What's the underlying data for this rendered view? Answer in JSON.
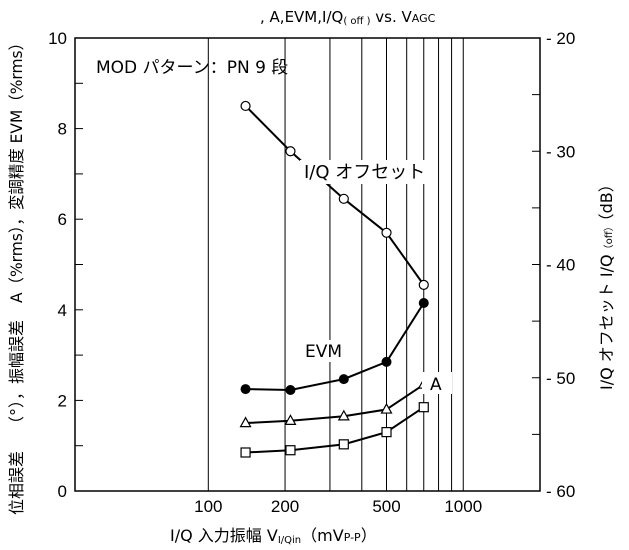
{
  "chart_data": {
    "type": "line",
    "title": ", A,EVM,I/Q(off) vs. VAGC",
    "title_parts": [
      ", A,EVM,I/Q",
      "( off )",
      " vs. V",
      "AGC"
    ],
    "annotation": "MOD パターン：PN 9 段",
    "x_axis": {
      "scale": "log",
      "range": [
        30,
        2000
      ],
      "ticks": [
        100,
        200,
        500,
        1000
      ],
      "tick_labels": [
        "100",
        "200",
        "500",
        "1000"
      ],
      "minor_gridlines": [
        100,
        200,
        300,
        400,
        500,
        600,
        700,
        800,
        900,
        1000
      ],
      "label_parts": [
        "I/Q 入力振幅 V",
        "I/Qin",
        "（mV",
        "P-P",
        "）"
      ]
    },
    "y_axis_left": {
      "range": [
        0,
        10
      ],
      "ticks": [
        0,
        2,
        4,
        6,
        8,
        10
      ],
      "tick_labels": [
        "0",
        "2",
        "4",
        "6",
        "8",
        "10"
      ],
      "label_parts": [
        "位相誤差",
        "（°），振幅誤差",
        "A（%rms），変調精度 EVM（%rms）"
      ]
    },
    "y_axis_right": {
      "range": [
        -60,
        -20
      ],
      "ticks": [
        -20,
        -30,
        -40,
        -50,
        -60
      ],
      "tick_labels": [
        "- 20",
        "- 30",
        "- 40",
        "- 50",
        "- 60"
      ],
      "label_parts": [
        "I/Q オフセット I/Q",
        "（off）",
        "（dB）"
      ]
    },
    "series": [
      {
        "name": "I/Q オフセット",
        "marker": "circle-open",
        "x": [
          140,
          210,
          340,
          500,
          700
        ],
        "y": [
          8.5,
          7.5,
          6.45,
          5.7,
          4.55
        ]
      },
      {
        "name": "EVM",
        "marker": "circle-filled",
        "x": [
          140,
          210,
          340,
          500,
          700
        ],
        "y": [
          2.25,
          2.23,
          2.47,
          2.85,
          4.15
        ]
      },
      {
        "name": "A",
        "marker": "triangle-open",
        "x": [
          140,
          210,
          340,
          500,
          700
        ],
        "y": [
          1.5,
          1.55,
          1.65,
          1.8,
          2.35
        ]
      },
      {
        "name": "",
        "marker": "square-open",
        "x": [
          140,
          210,
          340,
          500,
          700
        ],
        "y": [
          0.85,
          0.9,
          1.03,
          1.3,
          1.85
        ]
      }
    ]
  }
}
